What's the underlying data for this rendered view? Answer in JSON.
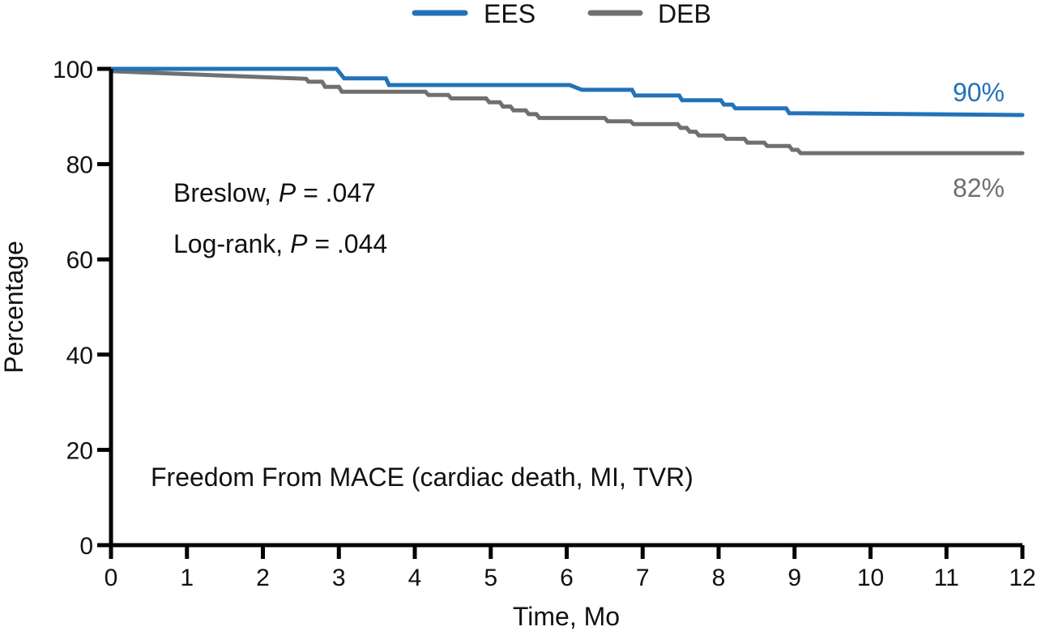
{
  "chart_data": {
    "type": "line",
    "subtype": "kaplan-meier-step",
    "title": "",
    "xlabel": "Time, Mo",
    "ylabel": "Percentage",
    "xlim": [
      0,
      12
    ],
    "ylim": [
      0,
      100
    ],
    "x_ticks": [
      0,
      1,
      2,
      3,
      4,
      5,
      6,
      7,
      8,
      9,
      10,
      11,
      12
    ],
    "y_ticks": [
      0,
      20,
      40,
      60,
      80,
      100
    ],
    "grid": false,
    "legend": {
      "placement": "top-center",
      "entries": [
        "EES",
        "DEB"
      ]
    },
    "series": [
      {
        "name": "EES",
        "color": "#2272b9",
        "points": [
          [
            0,
            100
          ],
          [
            2.97,
            100
          ],
          [
            3.07,
            98.0
          ],
          [
            3.62,
            98.0
          ],
          [
            3.66,
            96.6
          ],
          [
            6.04,
            96.6
          ],
          [
            6.2,
            95.6
          ],
          [
            6.86,
            95.6
          ],
          [
            6.9,
            94.4
          ],
          [
            7.48,
            94.4
          ],
          [
            7.52,
            93.4
          ],
          [
            8.03,
            93.4
          ],
          [
            8.07,
            92.5
          ],
          [
            8.18,
            92.5
          ],
          [
            8.22,
            91.7
          ],
          [
            8.89,
            91.7
          ],
          [
            8.93,
            90.7
          ],
          [
            12,
            90.3
          ]
        ],
        "end_label": "90%"
      },
      {
        "name": "DEB",
        "color": "#707070",
        "points": [
          [
            0,
            99.5
          ],
          [
            2.57,
            97.9
          ],
          [
            2.6,
            97.3
          ],
          [
            2.78,
            97.3
          ],
          [
            2.82,
            96.2
          ],
          [
            3.0,
            96.2
          ],
          [
            3.04,
            95.2
          ],
          [
            4.14,
            95.2
          ],
          [
            4.18,
            94.5
          ],
          [
            4.44,
            94.5
          ],
          [
            4.48,
            93.8
          ],
          [
            4.94,
            93.8
          ],
          [
            4.98,
            93.0
          ],
          [
            5.12,
            93.0
          ],
          [
            5.16,
            92.1
          ],
          [
            5.26,
            92.1
          ],
          [
            5.3,
            91.3
          ],
          [
            5.46,
            91.3
          ],
          [
            5.5,
            90.5
          ],
          [
            5.6,
            90.5
          ],
          [
            5.64,
            89.7
          ],
          [
            6.5,
            89.7
          ],
          [
            6.54,
            89.0
          ],
          [
            6.84,
            89.0
          ],
          [
            6.88,
            88.4
          ],
          [
            7.46,
            88.4
          ],
          [
            7.5,
            87.6
          ],
          [
            7.58,
            87.6
          ],
          [
            7.62,
            86.8
          ],
          [
            7.7,
            86.8
          ],
          [
            7.74,
            86.0
          ],
          [
            8.06,
            86.0
          ],
          [
            8.1,
            85.3
          ],
          [
            8.34,
            85.3
          ],
          [
            8.38,
            84.5
          ],
          [
            8.6,
            84.5
          ],
          [
            8.64,
            83.8
          ],
          [
            8.93,
            83.8
          ],
          [
            8.97,
            83.0
          ],
          [
            9.04,
            83.0
          ],
          [
            9.08,
            82.3
          ],
          [
            12,
            82.3
          ]
        ],
        "end_label": "82%"
      }
    ],
    "annotations": [
      {
        "id": "breslow",
        "prefix": "Breslow, ",
        "italic": "P",
        "suffix": " = .047"
      },
      {
        "id": "logrank",
        "prefix": "Log-rank, ",
        "italic": "P",
        "suffix": " = .044"
      },
      {
        "id": "endpoint",
        "text": "Freedom From MACE (cardiac death, MI, TVR)"
      }
    ]
  }
}
